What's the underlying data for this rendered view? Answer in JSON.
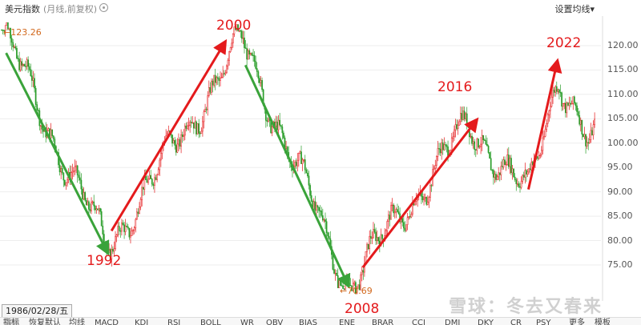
{
  "header": {
    "title": "美元指数",
    "subtitle": "(月线,前复权)",
    "ma_setting": "设置均线",
    "settings_icon": "gear-icon"
  },
  "annotations": {
    "y1992": "1992",
    "y2000": "2000",
    "y2008": "2008",
    "y2016": "2016",
    "y2022": "2022",
    "high_label": "←123.26",
    "low_label": "←70.69"
  },
  "date_box": "1986/02/28/五",
  "watermark": "雪球：冬去又春来",
  "tabs": [
    "指标",
    "恢复默认",
    "均线",
    "MACD",
    "KDJ",
    "RSI",
    "BOLL",
    "WR",
    "OBV",
    "BIAS",
    "ENE",
    "BRAR",
    "CCI",
    "DMI",
    "DKY",
    "CR",
    "PSY",
    "更多",
    "模板"
  ],
  "colors": {
    "up": "#e41a1c",
    "down": "#2a9d2a",
    "arrow_red": "#e41a1c",
    "arrow_green": "#3aa33a"
  },
  "chart_data": {
    "type": "candlestick",
    "title": "美元指数",
    "y_ticks": [
      "120.00",
      "115.00",
      "110.00",
      "105.00",
      "100.00",
      "95.00",
      "90.00",
      "85.00",
      "80.00",
      "75.00"
    ],
    "ylim": [
      70,
      124
    ],
    "high": 123.26,
    "low": 70.69,
    "trend_points": [
      {
        "year": 1985,
        "value": 123.26
      },
      {
        "year": 1992,
        "value": 78.4
      },
      {
        "year": 2001,
        "value": 120.9
      },
      {
        "year": 2008,
        "value": 70.69
      },
      {
        "year": 2016,
        "value": 103.8
      },
      {
        "year": 2020,
        "value": 89.5
      },
      {
        "year": 2022,
        "value": 114.8
      },
      {
        "year": 2024,
        "value": 100.0
      }
    ]
  }
}
